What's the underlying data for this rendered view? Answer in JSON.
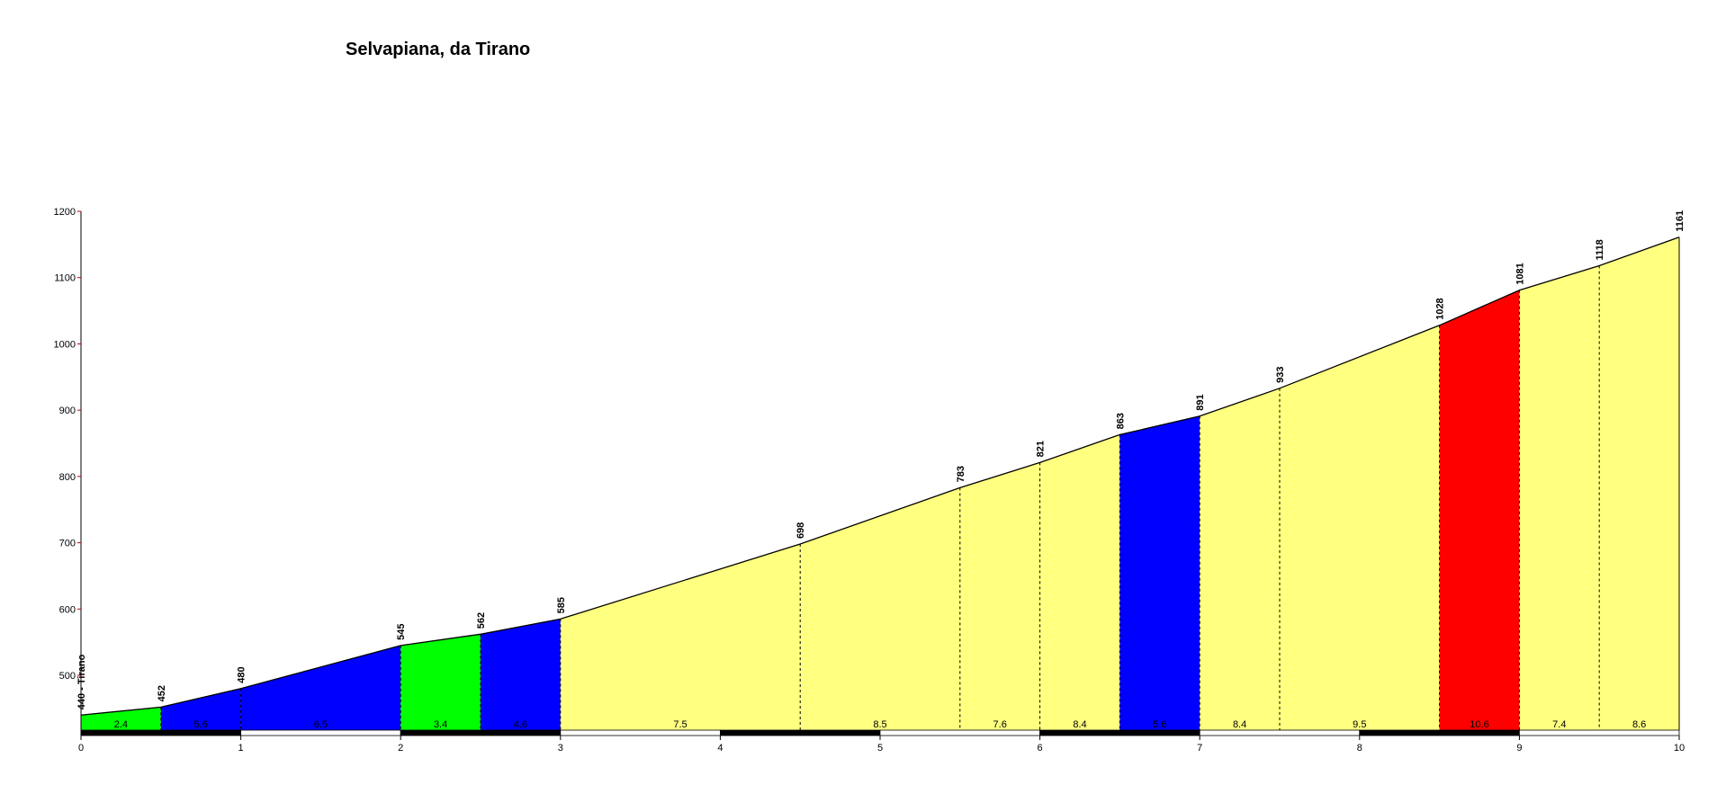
{
  "chart_data": {
    "type": "area",
    "title": "Selvapiana, da Tirano",
    "xlabel": "",
    "ylabel": "",
    "xlim": [
      0,
      10
    ],
    "ylim": [
      415,
      1200
    ],
    "y_ticks": [
      500,
      600,
      700,
      800,
      900,
      1000,
      1100,
      1200
    ],
    "x_ticks": [
      0,
      1,
      2,
      3,
      4,
      5,
      6,
      7,
      8,
      9,
      10
    ],
    "grid": false,
    "points": [
      {
        "x": 0,
        "y": 440,
        "label": "440 - Tirano"
      },
      {
        "x": 0.5,
        "y": 452,
        "label": "452"
      },
      {
        "x": 1,
        "y": 480,
        "label": "480"
      },
      {
        "x": 2,
        "y": 545,
        "label": "545"
      },
      {
        "x": 2.5,
        "y": 562,
        "label": "562"
      },
      {
        "x": 3,
        "y": 585,
        "label": "585"
      },
      {
        "x": 4.5,
        "y": 698,
        "label": "698"
      },
      {
        "x": 5.5,
        "y": 783,
        "label": "783"
      },
      {
        "x": 6,
        "y": 821,
        "label": "821"
      },
      {
        "x": 6.5,
        "y": 863,
        "label": "863"
      },
      {
        "x": 7,
        "y": 891,
        "label": "891"
      },
      {
        "x": 7.5,
        "y": 933,
        "label": "933"
      },
      {
        "x": 8.5,
        "y": 1028,
        "label": "1028"
      },
      {
        "x": 9,
        "y": 1081,
        "label": "1081"
      },
      {
        "x": 9.5,
        "y": 1118,
        "label": "1118"
      },
      {
        "x": 10,
        "y": 1161,
        "label": "1161"
      }
    ],
    "segments": [
      {
        "from": 0,
        "to": 0.5,
        "gradient_label": "2.4",
        "color": "#00ff00"
      },
      {
        "from": 0.5,
        "to": 1,
        "gradient_label": "5.6",
        "color": "#0000ff"
      },
      {
        "from": 1,
        "to": 2,
        "gradient_label": "6.5",
        "color": "#0000ff"
      },
      {
        "from": 2,
        "to": 2.5,
        "gradient_label": "3.4",
        "color": "#00ff00"
      },
      {
        "from": 2.5,
        "to": 3,
        "gradient_label": "4.6",
        "color": "#0000ff"
      },
      {
        "from": 3,
        "to": 4.5,
        "gradient_label": "7.5",
        "color": "#ffff80"
      },
      {
        "from": 4.5,
        "to": 5.5,
        "gradient_label": "8.5",
        "color": "#ffff80"
      },
      {
        "from": 5.5,
        "to": 6,
        "gradient_label": "7.6",
        "color": "#ffff80"
      },
      {
        "from": 6,
        "to": 6.5,
        "gradient_label": "8.4",
        "color": "#ffff80"
      },
      {
        "from": 6.5,
        "to": 7,
        "gradient_label": "5.6",
        "color": "#0000ff"
      },
      {
        "from": 7,
        "to": 7.5,
        "gradient_label": "8.4",
        "color": "#ffff80"
      },
      {
        "from": 7.5,
        "to": 8.5,
        "gradient_label": "9.5",
        "color": "#ffff80"
      },
      {
        "from": 8.5,
        "to": 9,
        "gradient_label": "10.6",
        "color": "#ff0000"
      },
      {
        "from": 9,
        "to": 9.5,
        "gradient_label": "7.4",
        "color": "#ffff80"
      },
      {
        "from": 9.5,
        "to": 10,
        "gradient_label": "8.6",
        "color": "#ffff80"
      }
    ],
    "colors": {
      "axis": "#000000",
      "tick_mark": "#c00000",
      "outline": "#000000",
      "scale_bar_dark": "#000000",
      "scale_bar_light": "#ffffff"
    }
  }
}
